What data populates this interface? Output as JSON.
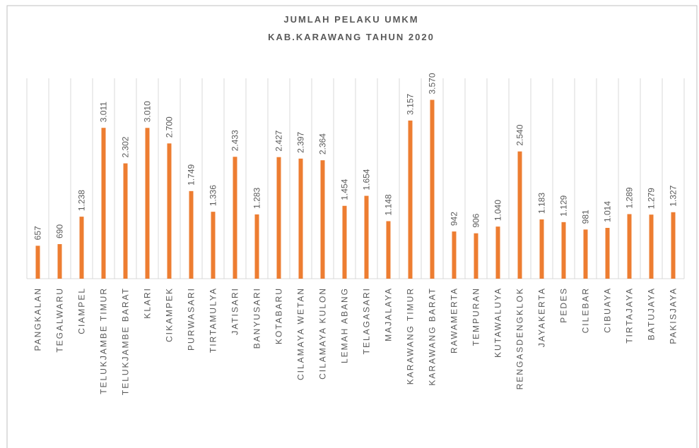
{
  "chart_data": {
    "type": "bar",
    "title": "JUMLAH PELAKU UMKM",
    "subtitle": "KAB.KARAWANG TAHUN 2020",
    "categories": [
      "PANGKALAN",
      "TEGALWARU",
      "CIAMPEL",
      "TELUKJAMBE TIMUR",
      "TELUKJAMBE BARAT",
      "KLARI",
      "CIKAMPEK",
      "PURWASARI",
      "TIRTAMULYA",
      "JATISARI",
      "BANYUSARI",
      "KOTABARU",
      "CILAMAYA WETAN",
      "CILAMAYA KULON",
      "LEMAH ABANG",
      "TELAGASARI",
      "MAJALAYA",
      "KARAWANG TIMUR",
      "KARAWANG BARAT",
      "RAWAMERTA",
      "TEMPURAN",
      "KUTAWALUYA",
      "RENGASDENGKLOK",
      "JAYAKERTA",
      "PEDES",
      "CILEBAR",
      "CIBUAYA",
      "TIRTAJAYA",
      "BATUJAYA",
      "PAKISJAYA"
    ],
    "values": [
      657,
      690,
      1238,
      3011,
      2302,
      3010,
      2700,
      1749,
      1336,
      2433,
      1283,
      2427,
      2397,
      2364,
      1454,
      1654,
      1148,
      3157,
      3570,
      942,
      906,
      1040,
      2540,
      1183,
      1129,
      981,
      1014,
      1289,
      1279,
      1327
    ],
    "value_labels": [
      "657",
      "690",
      "1.238",
      "3.011",
      "2.302",
      "3.010",
      "2.700",
      "1.749",
      "1.336",
      "2.433",
      "1.283",
      "2.427",
      "2.397",
      "2.364",
      "1.454",
      "1.654",
      "1.148",
      "3.157",
      "3.570",
      "942",
      "906",
      "1.040",
      "2.540",
      "1.183",
      "1.129",
      "981",
      "1.014",
      "1.289",
      "1.279",
      "1.327"
    ],
    "color": "#ed7d31",
    "ylim": [
      0,
      4000
    ]
  }
}
